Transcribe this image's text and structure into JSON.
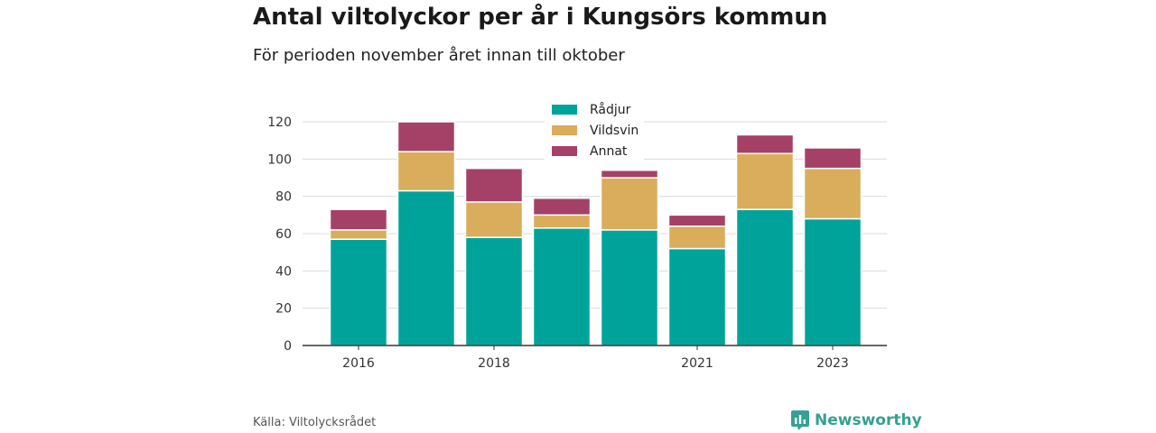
{
  "title": "Antal viltolyckor per år i Kungsörs kommun",
  "subtitle": "För perioden november året innan till oktober",
  "source": "Källa: Viltolycksrådet",
  "brand": {
    "name": "Newsworthy",
    "icon": "newsworthy-logo-icon",
    "color": "#35a093"
  },
  "chart_data": {
    "type": "bar",
    "stacked": true,
    "categories": [
      "2016",
      "2017",
      "2018",
      "2019",
      "2020",
      "2021",
      "2022",
      "2023"
    ],
    "x_tick_labels": [
      "2016",
      "",
      "2018",
      "",
      "",
      "2021",
      "",
      "2023"
    ],
    "series": [
      {
        "name": "Rådjur",
        "color": "#00a39a",
        "values": [
          57,
          83,
          58,
          63,
          62,
          52,
          73,
          68
        ]
      },
      {
        "name": "Vildsvin",
        "color": "#d9ad5b",
        "values": [
          5,
          21,
          19,
          7,
          28,
          12,
          30,
          27
        ]
      },
      {
        "name": "Annat",
        "color": "#a54167",
        "values": [
          11,
          16,
          18,
          9,
          4,
          6,
          10,
          11
        ]
      }
    ],
    "ylim": [
      0,
      120
    ],
    "yticks": [
      0,
      20,
      40,
      60,
      80,
      100,
      120
    ],
    "grid": true,
    "legend": "top-center",
    "xlabel": "",
    "ylabel": ""
  }
}
